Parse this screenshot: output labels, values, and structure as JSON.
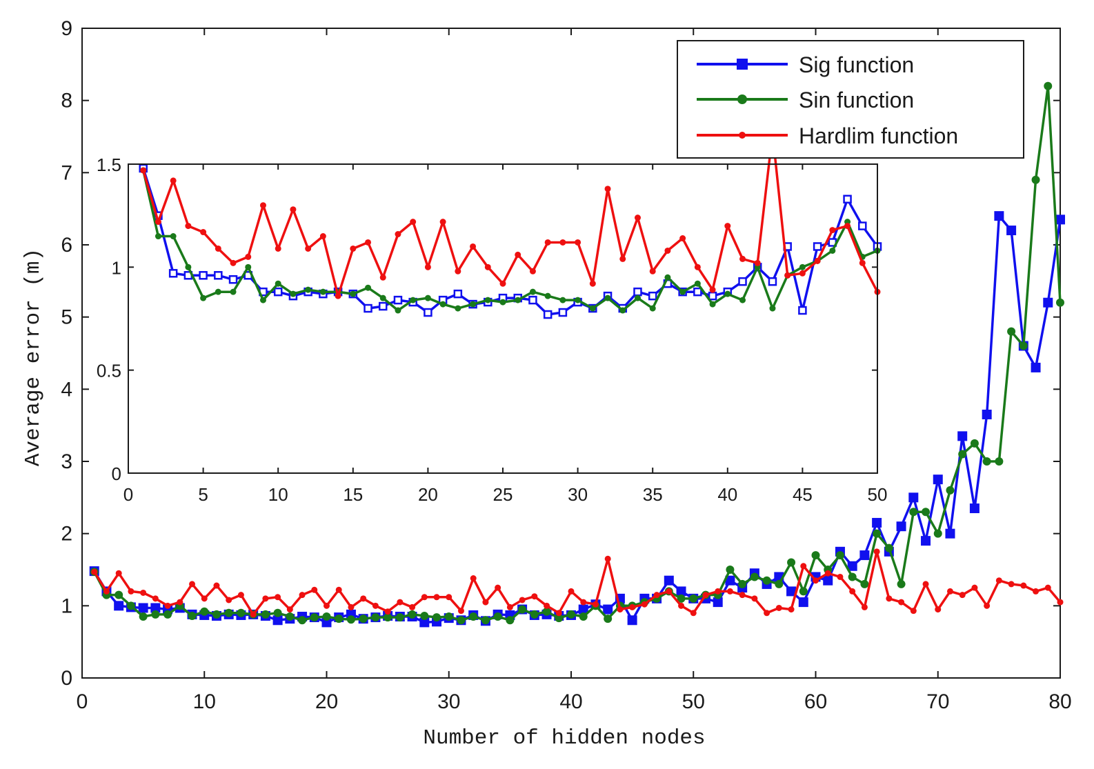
{
  "chart_data": [
    {
      "id": "main",
      "type": "line",
      "title": "",
      "xlabel": "Number of hidden nodes",
      "ylabel": "Average error (m)",
      "xlim": [
        0,
        80
      ],
      "ylim": [
        0,
        9
      ],
      "xticks": [
        0,
        10,
        20,
        30,
        40,
        50,
        60,
        70,
        80
      ],
      "yticks": [
        0,
        1,
        2,
        3,
        4,
        5,
        6,
        7,
        8,
        9
      ],
      "grid": false,
      "legend": "top-right",
      "x": [
        1,
        2,
        3,
        4,
        5,
        6,
        7,
        8,
        9,
        10,
        11,
        12,
        13,
        14,
        15,
        16,
        17,
        18,
        19,
        20,
        21,
        22,
        23,
        24,
        25,
        26,
        27,
        28,
        29,
        30,
        31,
        32,
        33,
        34,
        35,
        36,
        37,
        38,
        39,
        40,
        41,
        42,
        43,
        44,
        45,
        46,
        47,
        48,
        49,
        50,
        51,
        52,
        53,
        54,
        55,
        56,
        57,
        58,
        59,
        60,
        61,
        62,
        63,
        64,
        65,
        66,
        67,
        68,
        69,
        70,
        71,
        72,
        73,
        74,
        75,
        76,
        77,
        78,
        79,
        80
      ],
      "series": [
        {
          "name": "Sig function",
          "color": "#1010ee",
          "marker": "square",
          "values": [
            1.48,
            1.2,
            1.0,
            0.98,
            0.97,
            0.97,
            0.95,
            0.97,
            0.88,
            0.87,
            0.86,
            0.88,
            0.87,
            0.88,
            0.86,
            0.8,
            0.82,
            0.85,
            0.84,
            0.77,
            0.84,
            0.88,
            0.82,
            0.84,
            0.86,
            0.85,
            0.85,
            0.77,
            0.78,
            0.83,
            0.8,
            0.87,
            0.79,
            0.88,
            0.87,
            0.95,
            0.87,
            0.88,
            0.86,
            0.87,
            0.95,
            1.02,
            0.95,
            1.1,
            0.8,
            1.1,
            1.1,
            1.35,
            1.2,
            1.1,
            1.1,
            1.05,
            1.35,
            1.25,
            1.45,
            1.3,
            1.4,
            1.2,
            1.05,
            1.4,
            1.35,
            1.75,
            1.55,
            1.7,
            2.15,
            1.75,
            2.1,
            2.5,
            1.9,
            2.75,
            2.0,
            3.35,
            2.35,
            3.65,
            6.4,
            6.2,
            4.6,
            4.3,
            5.2,
            6.35
          ]
        },
        {
          "name": "Sin function",
          "color": "#1a7a1a",
          "marker": "circle",
          "values": [
            1.47,
            1.15,
            1.15,
            1.0,
            0.85,
            0.88,
            0.88,
            1.0,
            0.86,
            0.92,
            0.88,
            0.9,
            0.9,
            0.88,
            0.88,
            0.9,
            0.85,
            0.8,
            0.84,
            0.85,
            0.82,
            0.81,
            0.82,
            0.84,
            0.84,
            0.84,
            0.88,
            0.86,
            0.84,
            0.85,
            0.8,
            0.85,
            0.8,
            0.85,
            0.8,
            0.95,
            0.88,
            0.92,
            0.83,
            0.88,
            0.85,
            1.0,
            0.82,
            1.0,
            1.0,
            1.05,
            1.1,
            1.2,
            1.1,
            1.1,
            1.15,
            1.15,
            1.5,
            1.3,
            1.4,
            1.35,
            1.3,
            1.6,
            1.2,
            1.7,
            1.5,
            1.7,
            1.4,
            1.3,
            2.0,
            1.8,
            1.3,
            2.3,
            2.3,
            2.0,
            2.6,
            3.1,
            3.25,
            3.0,
            3.0,
            4.8,
            4.6,
            6.9,
            8.2,
            5.2
          ]
        },
        {
          "name": "Hardlim function",
          "color": "#ee1010",
          "marker": "dot",
          "values": [
            1.47,
            1.2,
            1.45,
            1.2,
            1.18,
            1.1,
            1.0,
            1.05,
            1.3,
            1.1,
            1.28,
            1.08,
            1.15,
            0.88,
            1.1,
            1.12,
            0.95,
            1.15,
            1.22,
            1.0,
            1.22,
            0.98,
            1.1,
            1.0,
            0.92,
            1.05,
            0.98,
            1.12,
            1.12,
            1.12,
            0.93,
            1.38,
            1.05,
            1.25,
            0.98,
            1.08,
            1.13,
            1.0,
            0.9,
            1.2,
            1.05,
            1.02,
            1.65,
            0.95,
            0.98,
            1.02,
            1.15,
            1.2,
            1.0,
            0.9,
            1.15,
            1.2,
            1.2,
            1.15,
            1.1,
            0.9,
            0.97,
            0.95,
            1.55,
            1.35,
            1.45,
            1.4,
            1.2,
            0.98,
            1.75,
            1.1,
            1.05,
            0.93,
            1.3,
            0.95,
            1.2,
            1.15,
            1.25,
            1.0,
            1.35,
            1.3,
            1.28,
            1.2,
            1.25,
            1.05
          ]
        }
      ]
    },
    {
      "id": "inset",
      "type": "line",
      "title": "",
      "xlabel": "",
      "ylabel": "",
      "xlim": [
        0,
        50
      ],
      "ylim": [
        0,
        1.5
      ],
      "xticks": [
        0,
        5,
        10,
        15,
        20,
        25,
        30,
        35,
        40,
        45,
        50
      ],
      "yticks": [
        0,
        0.5,
        1,
        1.5
      ],
      "grid": false,
      "x": [
        1,
        2,
        3,
        4,
        5,
        6,
        7,
        8,
        9,
        10,
        11,
        12,
        13,
        14,
        15,
        16,
        17,
        18,
        19,
        20,
        21,
        22,
        23,
        24,
        25,
        26,
        27,
        28,
        29,
        30,
        31,
        32,
        33,
        34,
        35,
        36,
        37,
        38,
        39,
        40,
        41,
        42,
        43,
        44,
        45,
        46,
        47,
        48,
        49,
        50
      ],
      "series": [
        {
          "name": "Sig function",
          "color": "#1010ee",
          "marker": "open-square",
          "values": [
            1.48,
            1.25,
            0.97,
            0.96,
            0.96,
            0.96,
            0.94,
            0.96,
            0.88,
            0.88,
            0.86,
            0.88,
            0.87,
            0.88,
            0.87,
            0.8,
            0.81,
            0.84,
            0.83,
            0.78,
            0.84,
            0.87,
            0.82,
            0.83,
            0.85,
            0.85,
            0.84,
            0.77,
            0.78,
            0.83,
            0.8,
            0.86,
            0.8,
            0.88,
            0.86,
            0.92,
            0.88,
            0.88,
            0.86,
            0.88,
            0.93,
            1.0,
            0.93,
            1.1,
            0.79,
            1.1,
            1.12,
            1.33,
            1.2,
            1.1
          ]
        },
        {
          "name": "Sin function",
          "color": "#1a7a1a",
          "marker": "dot",
          "values": [
            1.47,
            1.15,
            1.15,
            1.0,
            0.85,
            0.88,
            0.88,
            1.0,
            0.84,
            0.92,
            0.87,
            0.89,
            0.88,
            0.88,
            0.87,
            0.9,
            0.85,
            0.79,
            0.84,
            0.85,
            0.82,
            0.8,
            0.82,
            0.84,
            0.83,
            0.84,
            0.88,
            0.86,
            0.84,
            0.84,
            0.8,
            0.85,
            0.79,
            0.85,
            0.8,
            0.95,
            0.88,
            0.92,
            0.82,
            0.87,
            0.84,
            1.0,
            0.8,
            0.96,
            1.0,
            1.03,
            1.08,
            1.22,
            1.05,
            1.08
          ]
        },
        {
          "name": "Hardlim function",
          "color": "#ee1010",
          "marker": "dot",
          "values": [
            1.47,
            1.22,
            1.42,
            1.2,
            1.17,
            1.09,
            1.02,
            1.05,
            1.3,
            1.09,
            1.28,
            1.09,
            1.15,
            0.86,
            1.09,
            1.12,
            0.95,
            1.16,
            1.22,
            1.0,
            1.22,
            0.98,
            1.1,
            1.0,
            0.92,
            1.06,
            0.98,
            1.12,
            1.12,
            1.12,
            0.92,
            1.38,
            1.04,
            1.24,
            0.98,
            1.08,
            1.14,
            1.0,
            0.89,
            1.2,
            1.04,
            1.02,
            1.65,
            0.96,
            0.97,
            1.03,
            1.18,
            1.2,
            1.02,
            0.88
          ]
        }
      ]
    }
  ]
}
